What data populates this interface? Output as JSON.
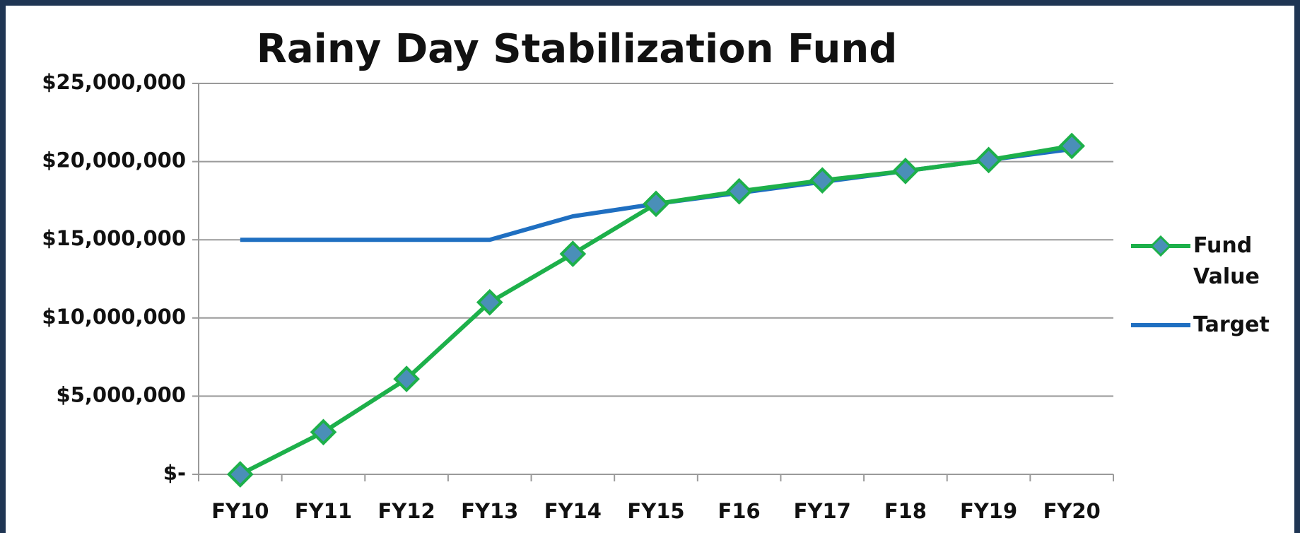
{
  "chart_data": {
    "type": "line",
    "title": "Rainy Day Stabilization Fund",
    "categories": [
      "FY10",
      "FY11",
      "FY12",
      "FY13",
      "FY14",
      "FY15",
      "F16",
      "FY17",
      "F18",
      "FY19",
      "FY20"
    ],
    "series": [
      {
        "name": "Fund Value",
        "color": "#1db04a",
        "marker_color": "#4a8fb8",
        "values": [
          0,
          2700000,
          6100000,
          11000000,
          14100000,
          17300000,
          18100000,
          18800000,
          19400000,
          20100000,
          21000000
        ]
      },
      {
        "name": "Target",
        "color": "#1f6fc1",
        "values": [
          15000000,
          15000000,
          15000000,
          15000000,
          16500000,
          17300000,
          18000000,
          18700000,
          19400000,
          20100000,
          20800000
        ]
      }
    ],
    "ylim": [
      0,
      25000000
    ],
    "yticks": [
      {
        "value": 0,
        "label": "$-"
      },
      {
        "value": 5000000,
        "label": "$5,000,000"
      },
      {
        "value": 10000000,
        "label": "$10,000,000"
      },
      {
        "value": 15000000,
        "label": "$15,000,000"
      },
      {
        "value": 20000000,
        "label": "$20,000,000"
      },
      {
        "value": 25000000,
        "label": "$25,000,000"
      }
    ],
    "grid": true,
    "legend": "right"
  }
}
